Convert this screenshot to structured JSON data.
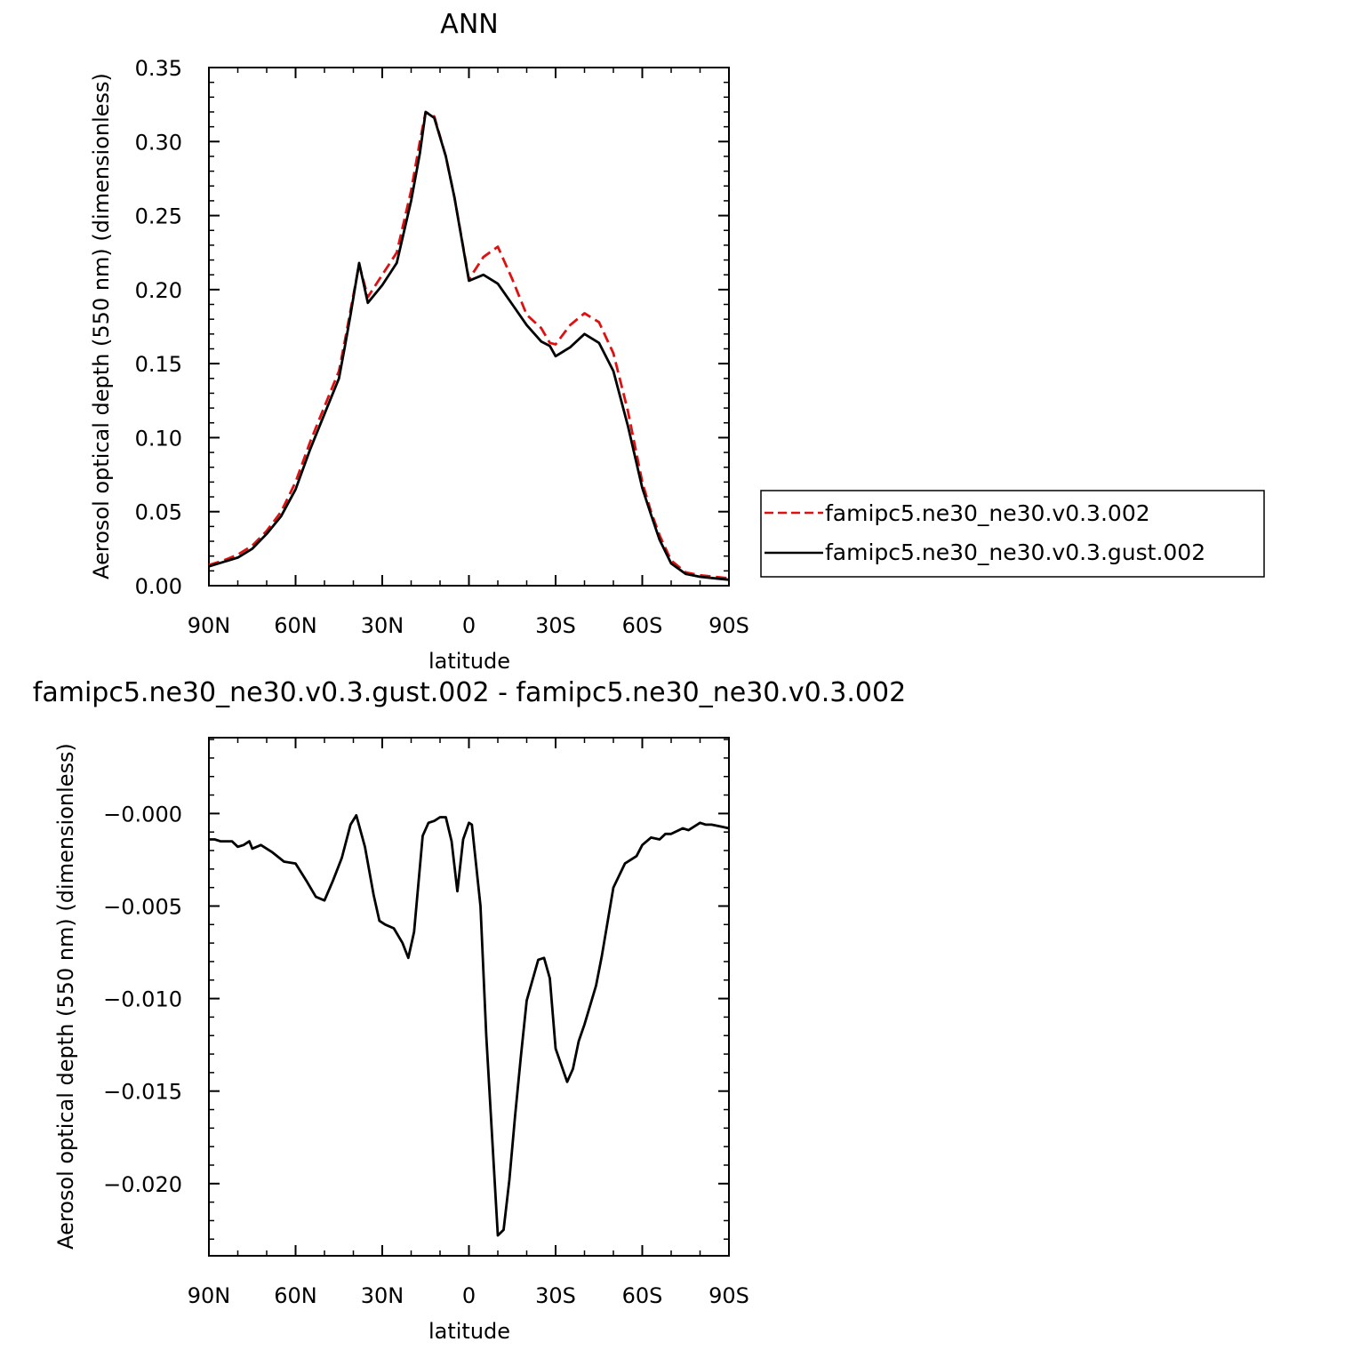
{
  "chart_data": [
    {
      "type": "line",
      "title": "ANN",
      "xlabel": "latitude",
      "ylabel": "Aerosol optical depth (550 nm) (dimensionless)",
      "xlim": [
        90,
        -90
      ],
      "ylim": [
        0,
        0.35
      ],
      "x_ticks": [
        90,
        60,
        30,
        0,
        -30,
        -60,
        -90
      ],
      "x_tick_labels": [
        "90N",
        "60N",
        "30N",
        "0",
        "30S",
        "60S",
        "90S"
      ],
      "y_ticks": [
        0,
        0.05,
        0.1,
        0.15,
        0.2,
        0.25,
        0.3,
        0.35
      ],
      "y_tick_labels": [
        "0.00",
        "0.05",
        "0.10",
        "0.15",
        "0.20",
        "0.25",
        "0.30",
        "0.35"
      ],
      "grid": false,
      "legend_position": "right",
      "x": [
        90,
        85,
        80,
        75,
        70,
        65,
        60,
        55,
        50,
        45,
        43,
        41,
        38,
        35,
        30,
        25,
        20,
        17,
        15,
        12,
        8,
        5,
        0,
        -5,
        -10,
        -15,
        -20,
        -25,
        -28,
        -30,
        -35,
        -40,
        -45,
        -50,
        -55,
        -60,
        -63,
        -66,
        -70,
        -75,
        -80,
        -85,
        -90
      ],
      "series": [
        {
          "name": "famipc5.ne30_ne30.v0.3.002",
          "color": "#e01010",
          "dash": "dashed",
          "values": [
            0.014,
            0.017,
            0.021,
            0.027,
            0.037,
            0.05,
            0.07,
            0.097,
            0.121,
            0.145,
            0.165,
            0.186,
            0.217,
            0.195,
            0.21,
            0.225,
            0.267,
            0.3,
            0.32,
            0.317,
            0.29,
            0.262,
            0.207,
            0.222,
            0.229,
            0.207,
            0.183,
            0.174,
            0.164,
            0.163,
            0.176,
            0.184,
            0.178,
            0.157,
            0.118,
            0.07,
            0.05,
            0.034,
            0.017,
            0.009,
            0.007,
            0.006,
            0.005
          ]
        },
        {
          "name": "famipc5.ne30_ne30.v0.3.gust.002",
          "color": "#000000",
          "dash": "solid",
          "values": [
            0.013,
            0.016,
            0.019,
            0.025,
            0.035,
            0.047,
            0.065,
            0.092,
            0.116,
            0.14,
            0.161,
            0.183,
            0.218,
            0.191,
            0.203,
            0.218,
            0.26,
            0.292,
            0.32,
            0.316,
            0.29,
            0.262,
            0.206,
            0.21,
            0.204,
            0.19,
            0.176,
            0.165,
            0.162,
            0.155,
            0.161,
            0.17,
            0.164,
            0.145,
            0.108,
            0.066,
            0.048,
            0.031,
            0.015,
            0.008,
            0.006,
            0.005,
            0.004
          ]
        }
      ]
    },
    {
      "type": "line",
      "title": "famipc5.ne30_ne30.v0.3.gust.002 - famipc5.ne30_ne30.v0.3.002",
      "xlabel": "latitude",
      "ylabel": "Aerosol optical depth (550 nm) (dimensionless)",
      "xlim": [
        90,
        -90
      ],
      "ylim": [
        -0.0239,
        0.0041
      ],
      "x_ticks": [
        90,
        60,
        30,
        0,
        -30,
        -60,
        -90
      ],
      "x_tick_labels": [
        "90N",
        "60N",
        "30N",
        "0",
        "30S",
        "60S",
        "90S"
      ],
      "y_ticks": [
        0,
        -0.005,
        -0.01,
        -0.015,
        -0.02
      ],
      "y_tick_labels": [
        "-0.000",
        "-0.005",
        "-0.010",
        "-0.015",
        "-0.020"
      ],
      "grid": false,
      "x": [
        90,
        88,
        86,
        84,
        82,
        80,
        78,
        76,
        75,
        72,
        68,
        64,
        60,
        56,
        53,
        50,
        47,
        44,
        41,
        39,
        36,
        33,
        31,
        29,
        26,
        23,
        21,
        19,
        16,
        14,
        12,
        10,
        8,
        6,
        4,
        2,
        0,
        -1,
        -4,
        -6,
        -10,
        -12,
        -14,
        -16,
        -18,
        -20,
        -24,
        -26,
        -28,
        -30,
        -34,
        -36,
        -38,
        -40,
        -44,
        -46,
        -50,
        -54,
        -58,
        -60,
        -63,
        -66,
        -68,
        -70,
        -74,
        -76,
        -80,
        -82,
        -84,
        -87,
        -90
      ],
      "series": [
        {
          "name": "",
          "color": "#000000",
          "dash": "solid",
          "values": [
            -0.0014,
            -0.0014,
            -0.0015,
            -0.0015,
            -0.0015,
            -0.0018,
            -0.0017,
            -0.0015,
            -0.0019,
            -0.0017,
            -0.0021,
            -0.0026,
            -0.0027,
            -0.0037,
            -0.0045,
            -0.0047,
            -0.0036,
            -0.0024,
            -0.0006,
            -0.0001,
            -0.0018,
            -0.0044,
            -0.0058,
            -0.006,
            -0.0062,
            -0.007,
            -0.0078,
            -0.0064,
            -0.0012,
            -0.0005,
            -0.0004,
            -0.0002,
            -0.0002,
            -0.0015,
            -0.0042,
            -0.0014,
            -0.0005,
            -0.0006,
            -0.005,
            -0.012,
            -0.0228,
            -0.0225,
            -0.0198,
            -0.0163,
            -0.0131,
            -0.0101,
            -0.0079,
            -0.0078,
            -0.0089,
            -0.0127,
            -0.0145,
            -0.0138,
            -0.0123,
            -0.0114,
            -0.0093,
            -0.0077,
            -0.004,
            -0.0027,
            -0.0023,
            -0.0017,
            -0.0013,
            -0.0014,
            -0.0011,
            -0.0011,
            -0.0008,
            -0.0009,
            -0.0005,
            -0.0006,
            -0.0006,
            -0.0007,
            -0.0008
          ]
        }
      ]
    }
  ]
}
